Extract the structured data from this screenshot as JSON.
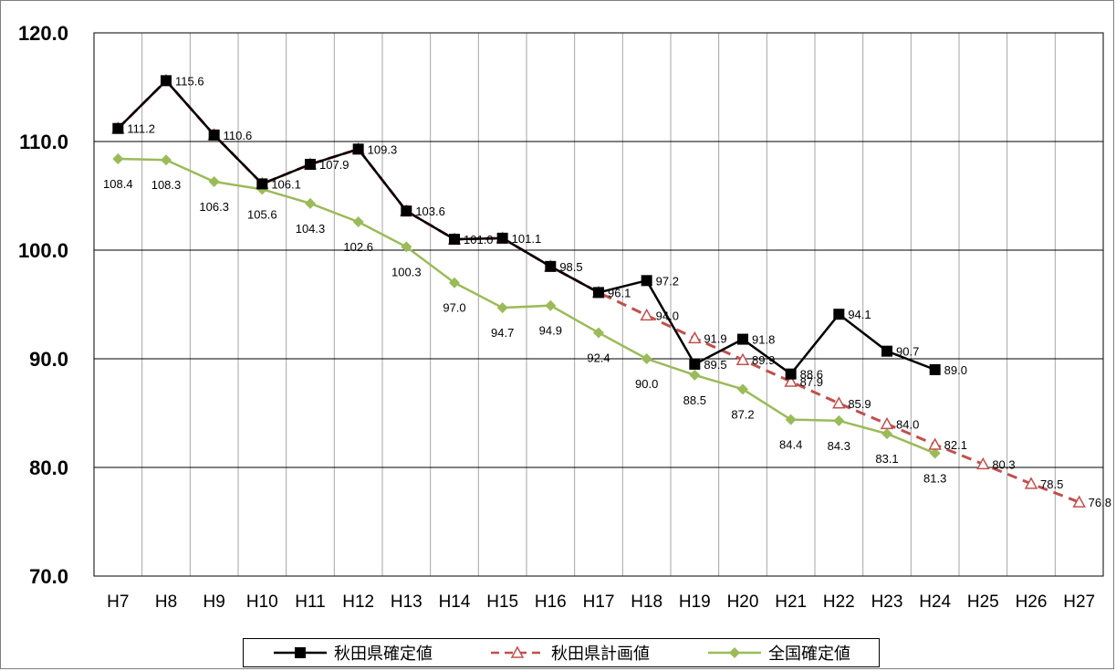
{
  "chart_data": {
    "type": "line",
    "categories": [
      "H7",
      "H8",
      "H9",
      "H10",
      "H11",
      "H12",
      "H13",
      "H14",
      "H15",
      "H16",
      "H17",
      "H18",
      "H19",
      "H20",
      "H21",
      "H22",
      "H23",
      "H24",
      "H25",
      "H26",
      "H27"
    ],
    "ylim": [
      70,
      120
    ],
    "yticks": [
      "120.0",
      "110.0",
      "100.0",
      "90.0",
      "80.0",
      "70.0"
    ],
    "ytick_values": [
      120,
      110,
      100,
      90,
      80,
      70
    ],
    "grid": true,
    "legend_position": "bottom",
    "series": [
      {
        "name": "秋田県確定値",
        "color": "#000000",
        "marker": "square",
        "dash": false,
        "values": [
          111.2,
          115.6,
          110.6,
          106.1,
          107.9,
          109.3,
          103.6,
          101.0,
          101.1,
          98.5,
          96.1,
          97.2,
          89.5,
          91.8,
          88.6,
          94.1,
          90.7,
          89.0,
          null,
          null,
          null
        ],
        "labels": [
          "111.2",
          "115.6",
          "110.6",
          "106.1",
          "107.9",
          "109.3",
          "103.6",
          "101.0",
          "101.1",
          "98.5",
          "96.1",
          "97.2",
          "89.5",
          "91.8",
          "88.6",
          "94.1",
          "90.7",
          "89.0",
          null,
          null,
          null
        ]
      },
      {
        "name": "秋田県計画値",
        "color": "#c0504d",
        "marker": "triangle",
        "dash": true,
        "values": [
          111.2,
          115.6,
          110.6,
          106.1,
          107.9,
          109.3,
          103.6,
          101.0,
          101.1,
          98.5,
          96.1,
          94.0,
          91.9,
          89.9,
          87.9,
          85.9,
          84.0,
          82.1,
          80.3,
          78.5,
          76.8
        ],
        "labels": [
          null,
          null,
          null,
          null,
          null,
          null,
          null,
          null,
          null,
          null,
          null,
          "94.0",
          "91.9",
          "89.9",
          "87.9",
          "85.9",
          "84.0",
          "82.1",
          "80.3",
          "78.5",
          "76.8"
        ]
      },
      {
        "name": "全国確定値",
        "color": "#9bbb59",
        "marker": "diamond",
        "dash": false,
        "values": [
          108.4,
          108.3,
          106.3,
          105.6,
          104.3,
          102.6,
          100.3,
          97.0,
          94.7,
          94.9,
          92.4,
          90.0,
          88.5,
          87.2,
          84.4,
          84.3,
          83.1,
          81.3,
          null,
          null,
          null
        ],
        "labels": [
          "108.4",
          "108.3",
          "106.3",
          "105.6",
          "104.3",
          "102.6",
          "100.3",
          "97.0",
          "94.7",
          "94.9",
          "92.4",
          "90.0",
          "88.5",
          "87.2",
          "84.4",
          "84.3",
          "83.1",
          "81.3",
          null,
          null,
          null
        ]
      }
    ]
  }
}
